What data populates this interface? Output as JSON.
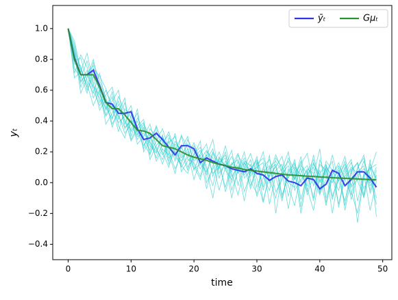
{
  "chart_data": {
    "type": "line",
    "x_label": "time",
    "y_label": "yₜ",
    "x": [
      0,
      1,
      2,
      3,
      4,
      5,
      6,
      7,
      8,
      9,
      10,
      11,
      12,
      13,
      14,
      15,
      16,
      17,
      18,
      19,
      20,
      21,
      22,
      23,
      24,
      25,
      26,
      27,
      28,
      29,
      30,
      31,
      32,
      33,
      34,
      35,
      36,
      37,
      38,
      39,
      40,
      41,
      42,
      43,
      44,
      45,
      46,
      47,
      48,
      49
    ],
    "xlim": [
      -2.45,
      51.45
    ],
    "xticks": [
      0,
      10,
      20,
      30,
      40,
      50
    ],
    "ylim": [
      -0.5,
      1.15
    ],
    "yticks": [
      {
        "value": -0.4,
        "label": "−0.4"
      },
      {
        "value": -0.2,
        "label": "−0.2"
      },
      {
        "value": 0,
        "label": "0.0"
      },
      {
        "value": 0.2,
        "label": "0.2"
      },
      {
        "value": 0.4,
        "label": "0.4"
      },
      {
        "value": 0.6,
        "label": "0.6"
      },
      {
        "value": 0.8,
        "label": "0.8"
      },
      {
        "value": 1.0,
        "label": "1.0"
      }
    ],
    "legend": "upper right",
    "samples": {
      "color": "#1fc8c8",
      "paths": [
        [
          1.0,
          0.86,
          0.74,
          0.62,
          0.78,
          0.66,
          0.55,
          0.42,
          0.51,
          0.38,
          0.47,
          0.36,
          0.22,
          0.35,
          0.3,
          0.18,
          0.27,
          0.14,
          0.31,
          0.22,
          0.08,
          0.19,
          0.25,
          0.04,
          0.16,
          0.11,
          0.21,
          -0.02,
          0.13,
          0.06,
          0.17,
          -0.05,
          0.09,
          0.12,
          -0.08,
          0.04,
          0.15,
          -0.11,
          0.06,
          0.1,
          -0.07,
          0.02,
          0.18,
          0.01,
          -0.12,
          0.08,
          0.13,
          -0.04,
          0.05,
          -0.1
        ],
        [
          1.0,
          0.74,
          0.68,
          0.79,
          0.63,
          0.57,
          0.48,
          0.59,
          0.41,
          0.52,
          0.33,
          0.4,
          0.29,
          0.21,
          0.37,
          0.26,
          0.31,
          0.17,
          0.12,
          0.28,
          0.2,
          0.09,
          0.15,
          0.22,
          0.03,
          0.14,
          0.07,
          0.18,
          0.1,
          -0.04,
          0.12,
          0.16,
          0.02,
          -0.1,
          0.08,
          0.14,
          0.03,
          0.09,
          -0.06,
          0.12,
          0.05,
          -0.15,
          0.07,
          0.11,
          0.02,
          -0.08,
          0.1,
          0.16,
          -0.02,
          0.04
        ],
        [
          1.0,
          0.88,
          0.62,
          0.71,
          0.76,
          0.58,
          0.44,
          0.53,
          0.6,
          0.35,
          0.41,
          0.28,
          0.36,
          0.24,
          0.19,
          0.31,
          0.14,
          0.27,
          0.2,
          0.08,
          0.24,
          0.16,
          0.05,
          0.19,
          0.11,
          -0.03,
          0.13,
          0.08,
          0.2,
          0.01,
          -0.07,
          0.1,
          0.15,
          0.04,
          -0.12,
          0.09,
          0.02,
          0.17,
          -0.04,
          -0.18,
          0.06,
          0.12,
          -0.09,
          0.03,
          0.14,
          -0.06,
          -0.2,
          0.05,
          0.09,
          0.12
        ],
        [
          1.0,
          0.79,
          0.81,
          0.66,
          0.58,
          0.71,
          0.52,
          0.38,
          0.46,
          0.55,
          0.3,
          0.42,
          0.34,
          0.27,
          0.16,
          0.25,
          0.33,
          0.2,
          0.1,
          0.17,
          0.26,
          0.12,
          0.07,
          0.2,
          0.13,
          0.16,
          -0.05,
          0.08,
          0.14,
          0.11,
          0.03,
          -0.13,
          0.06,
          0.18,
          0.08,
          -0.02,
          -0.15,
          0.07,
          0.11,
          0.02,
          -0.08,
          0.1,
          0.04,
          -0.14,
          0.06,
          0.13,
          0.01,
          -0.09,
          0.15,
          -0.22
        ],
        [
          1.0,
          0.9,
          0.7,
          0.58,
          0.74,
          0.69,
          0.61,
          0.47,
          0.39,
          0.43,
          0.5,
          0.31,
          0.38,
          0.3,
          0.22,
          0.15,
          0.29,
          0.24,
          0.11,
          0.06,
          0.19,
          0.23,
          0.1,
          -0.02,
          0.17,
          0.09,
          0.12,
          0.15,
          -0.06,
          0.07,
          0.1,
          0.13,
          -0.14,
          0.05,
          0.09,
          0.2,
          -0.05,
          0.02,
          0.08,
          -0.12,
          0.15,
          0.04,
          0.0,
          0.1,
          -0.18,
          0.03,
          0.07,
          0.11,
          -0.05,
          0.08
        ],
        [
          1.0,
          0.71,
          0.83,
          0.75,
          0.6,
          0.5,
          0.57,
          0.62,
          0.44,
          0.32,
          0.38,
          0.45,
          0.26,
          0.18,
          0.33,
          0.28,
          0.12,
          0.21,
          0.3,
          0.15,
          0.13,
          0.04,
          0.2,
          0.16,
          0.09,
          0.24,
          0.06,
          -0.08,
          0.1,
          0.19,
          0.05,
          0.07,
          0.11,
          -0.06,
          0.02,
          0.16,
          0.08,
          -0.2,
          0.04,
          0.13,
          0.01,
          0.09,
          -0.11,
          0.06,
          0.17,
          -0.03,
          0.02,
          0.14,
          0.0,
          0.1
        ],
        [
          1.0,
          0.83,
          0.65,
          0.73,
          0.55,
          0.64,
          0.49,
          0.41,
          0.56,
          0.46,
          0.28,
          0.37,
          0.41,
          0.19,
          0.27,
          0.35,
          0.21,
          0.09,
          0.18,
          0.25,
          0.14,
          0.18,
          -0.04,
          0.11,
          0.2,
          0.08,
          0.02,
          0.14,
          0.05,
          0.12,
          -0.09,
          0.03,
          0.1,
          0.14,
          0.07,
          -0.17,
          0.06,
          0.12,
          0.19,
          -0.02,
          0.08,
          -0.1,
          0.05,
          0.13,
          0.02,
          0.09,
          -0.26,
          0.04,
          0.1,
          0.03
        ],
        [
          1.0,
          0.77,
          0.76,
          0.6,
          0.69,
          0.52,
          0.6,
          0.5,
          0.33,
          0.48,
          0.42,
          0.25,
          0.3,
          0.38,
          0.23,
          0.12,
          0.26,
          0.3,
          0.16,
          0.2,
          0.02,
          0.15,
          0.21,
          0.13,
          -0.05,
          0.1,
          0.17,
          0.06,
          0.13,
          -0.02,
          0.09,
          0.2,
          0.0,
          0.08,
          0.12,
          -0.09,
          0.1,
          0.05,
          -0.02,
          0.18,
          0.0,
          0.07,
          0.14,
          -0.16,
          0.04,
          0.1,
          0.06,
          -0.1,
          0.08,
          0.2
        ],
        [
          1.0,
          0.85,
          0.58,
          0.68,
          0.8,
          0.61,
          0.38,
          0.45,
          0.53,
          0.4,
          0.34,
          0.48,
          0.2,
          0.28,
          0.36,
          0.2,
          0.1,
          0.25,
          0.22,
          0.3,
          0.11,
          0.02,
          0.17,
          0.28,
          0.06,
          0.12,
          -0.1,
          0.09,
          0.16,
          0.04,
          0.13,
          -0.03,
          0.18,
          -0.2,
          0.06,
          0.11,
          0.02,
          0.14,
          -0.08,
          0.05,
          0.22,
          -0.13,
          0.03,
          -0.05,
          0.09,
          0.15,
          -0.12,
          0.06,
          -0.18,
          0.01
        ],
        [
          1.0,
          0.92,
          0.73,
          0.64,
          0.5,
          0.6,
          0.47,
          0.56,
          0.37,
          0.29,
          0.44,
          0.33,
          0.24,
          0.32,
          0.14,
          0.22,
          0.18,
          0.32,
          0.07,
          0.14,
          0.18,
          0.27,
          0.0,
          0.09,
          0.15,
          -0.06,
          0.11,
          0.19,
          0.03,
          0.08,
          0.14,
          -0.12,
          0.05,
          0.1,
          0.17,
          0.0,
          -0.03,
          0.11,
          0.06,
          -0.1,
          0.12,
          0.08,
          -0.2,
          0.05,
          0.12,
          -0.02,
          0.09,
          0.18,
          -0.07,
          0.05
        ],
        [
          1.0,
          0.68,
          0.72,
          0.84,
          0.65,
          0.47,
          0.54,
          0.36,
          0.48,
          0.41,
          0.27,
          0.35,
          0.39,
          0.15,
          0.24,
          0.29,
          0.19,
          0.06,
          0.24,
          0.1,
          0.16,
          0.21,
          0.08,
          -0.1,
          0.13,
          0.18,
          0.04,
          0.1,
          -0.12,
          0.09,
          0.15,
          0.04,
          -0.05,
          0.16,
          0.1,
          0.03,
          0.12,
          -0.16,
          0.07,
          0.15,
          -0.05,
          0.11,
          0.03,
          0.08,
          -0.15,
          0.07,
          0.13,
          -0.08,
          0.12,
          0.02
        ],
        [
          1.0,
          0.8,
          0.66,
          0.7,
          0.62,
          0.55,
          0.43,
          0.5,
          0.43,
          0.36,
          0.4,
          0.3,
          0.32,
          0.26,
          0.2,
          0.3,
          0.16,
          0.2,
          0.14,
          0.22,
          0.09,
          0.12,
          0.18,
          0.06,
          0.1,
          0.2,
          0.0,
          0.11,
          0.07,
          0.15,
          -0.03,
          0.09,
          0.04,
          0.11,
          -0.1,
          0.07,
          0.13,
          0.0,
          0.09,
          0.06,
          -0.06,
          0.14,
          0.08,
          0.01,
          0.1,
          -0.11,
          0.05,
          0.09,
          0.03,
          -0.14
        ]
      ]
    },
    "series": [
      {
        "name": "ȳₜ",
        "color": "#2b35e6",
        "values": [
          1.0,
          0.81,
          0.7,
          0.7,
          0.73,
          0.63,
          0.52,
          0.51,
          0.45,
          0.45,
          0.46,
          0.35,
          0.28,
          0.29,
          0.32,
          0.28,
          0.23,
          0.18,
          0.24,
          0.24,
          0.22,
          0.13,
          0.16,
          0.14,
          0.12,
          0.11,
          0.09,
          0.08,
          0.07,
          0.09,
          0.06,
          0.05,
          0.015,
          0.04,
          0.05,
          0.01,
          0.0,
          -0.02,
          0.03,
          0.02,
          -0.04,
          -0.01,
          0.08,
          0.06,
          -0.02,
          0.02,
          0.07,
          0.07,
          0.03,
          -0.03
        ]
      },
      {
        "name": "Gμₜ",
        "color": "#2a9030",
        "values": [
          1.0,
          0.8,
          0.7,
          0.7,
          0.7,
          0.62,
          0.52,
          0.48,
          0.48,
          0.44,
          0.39,
          0.34,
          0.335,
          0.32,
          0.28,
          0.24,
          0.23,
          0.22,
          0.2,
          0.18,
          0.165,
          0.155,
          0.145,
          0.13,
          0.12,
          0.11,
          0.1,
          0.095,
          0.085,
          0.08,
          0.075,
          0.07,
          0.065,
          0.06,
          0.055,
          0.05,
          0.048,
          0.045,
          0.042,
          0.04,
          0.037,
          0.035,
          0.032,
          0.03,
          0.028,
          0.026,
          0.024,
          0.022,
          0.02,
          0.018
        ]
      }
    ]
  }
}
